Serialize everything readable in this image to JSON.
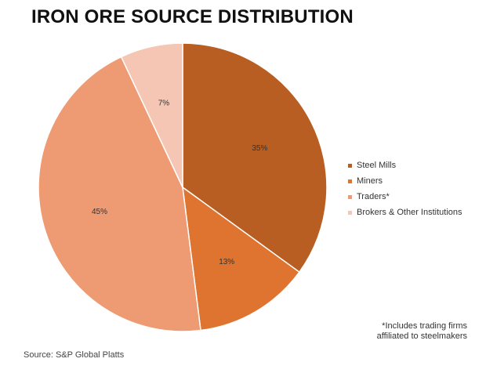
{
  "chart_data": {
    "type": "pie",
    "title": "IRON ORE SOURCE DISTRIBUTION",
    "categories": [
      "Steel Mills",
      "Miners",
      "Traders*",
      "Brokers & Other Institutions"
    ],
    "values": [
      35,
      13,
      45,
      7
    ],
    "labels": [
      "35%",
      "13%",
      "45%",
      "7%"
    ],
    "colors": [
      "#B85E22",
      "#DE7430",
      "#EE9A72",
      "#F5C6B3"
    ],
    "legend_position": "right",
    "footnote": [
      "*Includes trading firms",
      "affiliated to steelmakers"
    ],
    "source": "Source: S&P Global Platts"
  }
}
